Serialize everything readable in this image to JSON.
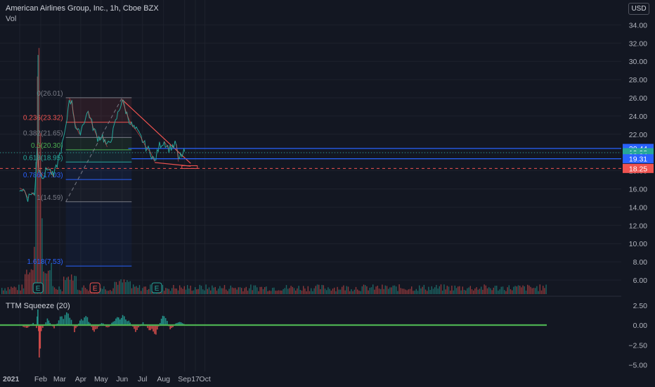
{
  "header": {
    "title": "American Airlines Group, Inc., 1h, Cboe BZX",
    "volume_label": "Vol",
    "currency_button": "USD"
  },
  "indicator": {
    "label": "TTM Squeeze (20)"
  },
  "colors": {
    "background": "#131722",
    "grid": "#1e222d",
    "up": "#26a69a",
    "down": "#ef5350",
    "fib_red": "#ef5350",
    "fib_green": "#4caf50",
    "fib_blue": "#2962ff",
    "fib_gray": "#787b86",
    "trendline": "#ef5350",
    "squeeze_on": "#4caf50"
  },
  "chart_data": [
    {
      "type": "line",
      "name": "price",
      "x_axis_labels": [
        "2021",
        "Feb",
        "Mar",
        "Apr",
        "May",
        "Jun",
        "Jul",
        "Aug",
        "Sep",
        "17",
        "Oct"
      ],
      "y_axis_labels": [
        "34.00",
        "32.00",
        "30.00",
        "28.00",
        "26.00",
        "24.00",
        "22.00",
        "20.00",
        "18.00",
        "16.00",
        "14.00",
        "12.00",
        "10.00",
        "8.00",
        "6.00"
      ],
      "ylim": [
        5,
        35
      ],
      "price_path": [
        {
          "x": "2021-01-01",
          "y": 16.1
        },
        {
          "x": "2021-01-08",
          "y": 15.8
        },
        {
          "x": "2021-01-13",
          "y": 15.0
        },
        {
          "x": "2021-01-18",
          "y": 15.6
        },
        {
          "x": "2021-01-23",
          "y": 15.3
        },
        {
          "x": "2021-01-27",
          "y": 20.9
        },
        {
          "x": "2021-01-29",
          "y": 18.1
        },
        {
          "x": "2021-02-05",
          "y": 17.4
        },
        {
          "x": "2021-02-12",
          "y": 18.4
        },
        {
          "x": "2021-02-20",
          "y": 17.3
        },
        {
          "x": "2021-02-27",
          "y": 19.2
        },
        {
          "x": "2021-03-03",
          "y": 20.3
        },
        {
          "x": "2021-03-10",
          "y": 22.6
        },
        {
          "x": "2021-03-15",
          "y": 26.0
        },
        {
          "x": "2021-03-19",
          "y": 25.4
        },
        {
          "x": "2021-03-24",
          "y": 23.0
        },
        {
          "x": "2021-03-30",
          "y": 22.0
        },
        {
          "x": "2021-04-05",
          "y": 23.3
        },
        {
          "x": "2021-04-12",
          "y": 24.5
        },
        {
          "x": "2021-04-19",
          "y": 22.8
        },
        {
          "x": "2021-04-26",
          "y": 21.6
        },
        {
          "x": "2021-05-03",
          "y": 21.8
        },
        {
          "x": "2021-05-10",
          "y": 20.6
        },
        {
          "x": "2021-05-17",
          "y": 21.8
        },
        {
          "x": "2021-05-24",
          "y": 23.8
        },
        {
          "x": "2021-06-01",
          "y": 25.8
        },
        {
          "x": "2021-06-08",
          "y": 24.2
        },
        {
          "x": "2021-06-15",
          "y": 23.0
        },
        {
          "x": "2021-06-22",
          "y": 22.4
        },
        {
          "x": "2021-06-29",
          "y": 21.6
        },
        {
          "x": "2021-07-06",
          "y": 20.6
        },
        {
          "x": "2021-07-13",
          "y": 20.0
        },
        {
          "x": "2021-07-19",
          "y": 19.0
        },
        {
          "x": "2021-07-26",
          "y": 20.8
        },
        {
          "x": "2021-08-02",
          "y": 21.2
        },
        {
          "x": "2021-08-09",
          "y": 20.4
        },
        {
          "x": "2021-08-16",
          "y": 20.8
        },
        {
          "x": "2021-08-20",
          "y": 20.9
        },
        {
          "x": "2021-08-23",
          "y": 19.0
        },
        {
          "x": "2021-08-26",
          "y": 19.6
        },
        {
          "x": "2021-08-30",
          "y": 19.9
        },
        {
          "x": "2021-09-01",
          "y": 20.1
        }
      ],
      "fib_levels": [
        {
          "label": "0(26.01)",
          "value": 26.01,
          "color": "#787b86"
        },
        {
          "label": "0.236(23.32)",
          "value": 23.32,
          "color": "#ef5350"
        },
        {
          "label": "0.382(21.65)",
          "value": 21.65,
          "color": "#787b86"
        },
        {
          "label": "0.5(20.30)",
          "value": 20.3,
          "color": "#4caf50"
        },
        {
          "label": "0.618(18.95)",
          "value": 18.95,
          "color": "#26a69a"
        },
        {
          "label": "0.786(17.03)",
          "value": 17.03,
          "color": "#2962ff"
        },
        {
          "label": "1(14.59)",
          "value": 14.59,
          "color": "#787b86"
        },
        {
          "label": "1.618(7.53)",
          "value": 7.53,
          "color": "#2962ff"
        }
      ],
      "price_tags": [
        {
          "label": "20.44",
          "value": 20.44,
          "color": "#2962ff"
        },
        {
          "label": "19.98",
          "value": 19.98,
          "color": "#26a69a"
        },
        {
          "label": "36:34",
          "value": 19.62,
          "color": "#26a69a"
        },
        {
          "label": "19.31",
          "value": 19.31,
          "color": "#2962ff"
        },
        {
          "label": "18.25",
          "value": 18.25,
          "color": "#ef5350"
        }
      ],
      "earnings_markers": [
        {
          "label": "E",
          "x": "2021-01-28",
          "color": "#26a69a"
        },
        {
          "label": "E",
          "x": "2021-04-22",
          "color": "#ef5350"
        },
        {
          "label": "E",
          "x": "2021-07-22",
          "color": "#26a69a"
        }
      ]
    },
    {
      "type": "area",
      "name": "TTM Squeeze (20)",
      "y_axis_labels": [
        "2.50",
        "0.00",
        "−2.50",
        "−5.00"
      ],
      "ylim": [
        -5.3,
        3.0
      ],
      "x": [
        "2021-01-01",
        "2021-01-10",
        "2021-01-20",
        "2021-01-25",
        "2021-01-27",
        "2021-01-29",
        "2021-02-01",
        "2021-02-10",
        "2021-02-20",
        "2021-03-01",
        "2021-03-08",
        "2021-03-15",
        "2021-03-22",
        "2021-04-01",
        "2021-04-10",
        "2021-04-20",
        "2021-05-01",
        "2021-05-10",
        "2021-05-20",
        "2021-06-01",
        "2021-06-10",
        "2021-06-20",
        "2021-07-01",
        "2021-07-10",
        "2021-07-20",
        "2021-08-01",
        "2021-08-10",
        "2021-08-20",
        "2021-09-01"
      ],
      "values": [
        0.1,
        -0.4,
        0.3,
        -0.3,
        2.6,
        -4.8,
        -0.6,
        0.7,
        -0.3,
        0.9,
        1.3,
        1.4,
        -0.8,
        0.8,
        1.0,
        -0.9,
        0.4,
        -0.4,
        0.7,
        1.1,
        0.5,
        -0.7,
        0.3,
        -0.5,
        -1.0,
        1.5,
        -0.6,
        0.4,
        0.2
      ]
    }
  ]
}
